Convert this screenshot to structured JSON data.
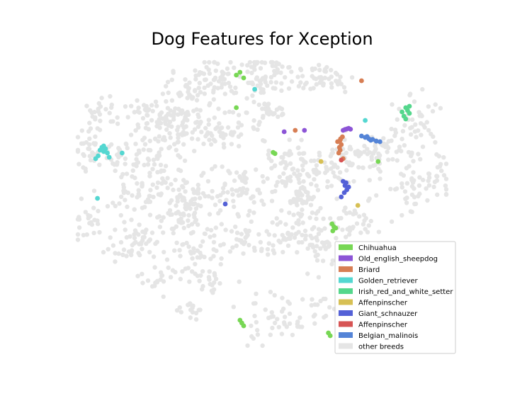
{
  "chart_data": {
    "type": "scatter",
    "title": "Dog Features for Xception",
    "xlabel": "",
    "ylabel": "",
    "axes_visible": false,
    "grid": false,
    "legend_placement": "lower-right",
    "background_series": {
      "name": "other breeds",
      "color": "#e5e5e5",
      "clusters": [
        {
          "cx": 0.38,
          "cy": 0.05,
          "sx": 0.03,
          "sy": 0.04,
          "n": 45
        },
        {
          "cx": 0.5,
          "cy": 0.04,
          "sx": 0.035,
          "sy": 0.04,
          "n": 60
        },
        {
          "cx": 0.65,
          "cy": 0.06,
          "sx": 0.05,
          "sy": 0.03,
          "n": 55
        },
        {
          "cx": 0.3,
          "cy": 0.1,
          "sx": 0.04,
          "sy": 0.03,
          "n": 40
        },
        {
          "cx": 0.19,
          "cy": 0.17,
          "sx": 0.03,
          "sy": 0.02,
          "n": 25
        },
        {
          "cx": 0.28,
          "cy": 0.22,
          "sx": 0.04,
          "sy": 0.04,
          "n": 55
        },
        {
          "cx": 0.38,
          "cy": 0.23,
          "sx": 0.06,
          "sy": 0.03,
          "n": 60
        },
        {
          "cx": 0.52,
          "cy": 0.18,
          "sx": 0.03,
          "sy": 0.03,
          "n": 30
        },
        {
          "cx": 0.06,
          "cy": 0.17,
          "sx": 0.03,
          "sy": 0.03,
          "n": 25
        },
        {
          "cx": 0.03,
          "cy": 0.3,
          "sx": 0.02,
          "sy": 0.04,
          "n": 30
        },
        {
          "cx": 0.12,
          "cy": 0.32,
          "sx": 0.04,
          "sy": 0.03,
          "n": 30
        },
        {
          "cx": 0.22,
          "cy": 0.3,
          "sx": 0.04,
          "sy": 0.06,
          "n": 60
        },
        {
          "cx": 0.16,
          "cy": 0.45,
          "sx": 0.05,
          "sy": 0.04,
          "n": 55
        },
        {
          "cx": 0.3,
          "cy": 0.49,
          "sx": 0.05,
          "sy": 0.05,
          "n": 90
        },
        {
          "cx": 0.44,
          "cy": 0.45,
          "sx": 0.04,
          "sy": 0.05,
          "n": 55
        },
        {
          "cx": 0.56,
          "cy": 0.37,
          "sx": 0.04,
          "sy": 0.05,
          "n": 60
        },
        {
          "cx": 0.66,
          "cy": 0.38,
          "sx": 0.04,
          "sy": 0.04,
          "n": 45
        },
        {
          "cx": 0.75,
          "cy": 0.33,
          "sx": 0.05,
          "sy": 0.04,
          "n": 45
        },
        {
          "cx": 0.85,
          "cy": 0.3,
          "sx": 0.05,
          "sy": 0.04,
          "n": 50
        },
        {
          "cx": 0.92,
          "cy": 0.2,
          "sx": 0.03,
          "sy": 0.04,
          "n": 35
        },
        {
          "cx": 0.97,
          "cy": 0.4,
          "sx": 0.03,
          "sy": 0.04,
          "n": 30
        },
        {
          "cx": 0.9,
          "cy": 0.45,
          "sx": 0.03,
          "sy": 0.05,
          "n": 35
        },
        {
          "cx": 0.02,
          "cy": 0.56,
          "sx": 0.02,
          "sy": 0.03,
          "n": 20
        },
        {
          "cx": 0.17,
          "cy": 0.62,
          "sx": 0.05,
          "sy": 0.04,
          "n": 60
        },
        {
          "cx": 0.33,
          "cy": 0.65,
          "sx": 0.05,
          "sy": 0.04,
          "n": 55
        },
        {
          "cx": 0.47,
          "cy": 0.62,
          "sx": 0.04,
          "sy": 0.04,
          "n": 45
        },
        {
          "cx": 0.6,
          "cy": 0.58,
          "sx": 0.04,
          "sy": 0.04,
          "n": 45
        },
        {
          "cx": 0.67,
          "cy": 0.65,
          "sx": 0.04,
          "sy": 0.04,
          "n": 40
        },
        {
          "cx": 0.75,
          "cy": 0.55,
          "sx": 0.04,
          "sy": 0.05,
          "n": 35
        },
        {
          "cx": 0.22,
          "cy": 0.75,
          "sx": 0.04,
          "sy": 0.03,
          "n": 25
        },
        {
          "cx": 0.37,
          "cy": 0.78,
          "sx": 0.03,
          "sy": 0.03,
          "n": 20
        },
        {
          "cx": 0.52,
          "cy": 0.9,
          "sx": 0.04,
          "sy": 0.04,
          "n": 40
        },
        {
          "cx": 0.31,
          "cy": 0.88,
          "sx": 0.03,
          "sy": 0.02,
          "n": 15
        },
        {
          "cx": 0.65,
          "cy": 0.88,
          "sx": 0.03,
          "sy": 0.03,
          "n": 20
        },
        {
          "cx": 0.61,
          "cy": 0.49,
          "sx": 0.02,
          "sy": 0.03,
          "n": 40
        }
      ]
    },
    "series": [
      {
        "name": "Chihuahua",
        "color": "#77d754",
        "points": [
          [
            0.43,
            0.045
          ],
          [
            0.44,
            0.035
          ],
          [
            0.45,
            0.055
          ],
          [
            0.43,
            0.16
          ],
          [
            0.53,
            0.318
          ],
          [
            0.535,
            0.322
          ],
          [
            0.69,
            0.57
          ],
          [
            0.695,
            0.58
          ],
          [
            0.7,
            0.585
          ],
          [
            0.692,
            0.595
          ],
          [
            0.44,
            0.91
          ],
          [
            0.445,
            0.92
          ],
          [
            0.45,
            0.93
          ],
          [
            0.68,
            0.955
          ],
          [
            0.685,
            0.965
          ],
          [
            0.815,
            0.35
          ]
        ]
      },
      {
        "name": "Old_english_sheepdog",
        "color": "#8c54d6",
        "points": [
          [
            0.725,
            0.237
          ],
          [
            0.73,
            0.235
          ],
          [
            0.735,
            0.233
          ],
          [
            0.74,
            0.236
          ],
          [
            0.72,
            0.24
          ],
          [
            0.56,
            0.245
          ],
          [
            0.615,
            0.24
          ]
        ]
      },
      {
        "name": "Briard",
        "color": "#d77e54",
        "points": [
          [
            0.705,
            0.28
          ],
          [
            0.712,
            0.275
          ],
          [
            0.715,
            0.29
          ],
          [
            0.71,
            0.3
          ],
          [
            0.712,
            0.31
          ],
          [
            0.708,
            0.32
          ],
          [
            0.713,
            0.27
          ],
          [
            0.718,
            0.263
          ],
          [
            0.72,
            0.34
          ],
          [
            0.59,
            0.24
          ],
          [
            0.77,
            0.065
          ]
        ]
      },
      {
        "name": "Golden_retriever",
        "color": "#54d7d1",
        "points": [
          [
            0.06,
            0.31
          ],
          [
            0.065,
            0.3
          ],
          [
            0.07,
            0.315
          ],
          [
            0.075,
            0.305
          ],
          [
            0.08,
            0.32
          ],
          [
            0.07,
            0.295
          ],
          [
            0.085,
            0.335
          ],
          [
            0.055,
            0.33
          ],
          [
            0.048,
            0.34
          ],
          [
            0.12,
            0.32
          ],
          [
            0.053,
            0.48
          ],
          [
            0.48,
            0.095
          ],
          [
            0.78,
            0.205
          ]
        ]
      },
      {
        "name": "Irish_red_and_white_setter",
        "color": "#54d78c",
        "points": [
          [
            0.89,
            0.16
          ],
          [
            0.895,
            0.17
          ],
          [
            0.9,
            0.18
          ],
          [
            0.885,
            0.19
          ],
          [
            0.89,
            0.2
          ],
          [
            0.88,
            0.175
          ],
          [
            0.9,
            0.155
          ]
        ]
      },
      {
        "name": "Affenpinscher",
        "color": "#d7c054",
        "points": [
          [
            0.76,
            0.505
          ],
          [
            0.66,
            0.35
          ]
        ]
      },
      {
        "name": "Giant_schnauzer",
        "color": "#5461d7",
        "points": [
          [
            0.72,
            0.42
          ],
          [
            0.725,
            0.435
          ],
          [
            0.73,
            0.45
          ],
          [
            0.735,
            0.44
          ],
          [
            0.728,
            0.425
          ],
          [
            0.723,
            0.46
          ],
          [
            0.715,
            0.475
          ],
          [
            0.4,
            0.5
          ]
        ]
      },
      {
        "name": "Affenpinscher",
        "color": "#d75454",
        "points": [
          [
            0.715,
            0.345
          ]
        ]
      },
      {
        "name": "Belgian_malinois",
        "color": "#5484d7",
        "points": [
          [
            0.77,
            0.26
          ],
          [
            0.78,
            0.265
          ],
          [
            0.79,
            0.27
          ],
          [
            0.8,
            0.272
          ],
          [
            0.81,
            0.278
          ],
          [
            0.82,
            0.28
          ],
          [
            0.785,
            0.262
          ],
          [
            0.795,
            0.275
          ]
        ]
      }
    ]
  }
}
